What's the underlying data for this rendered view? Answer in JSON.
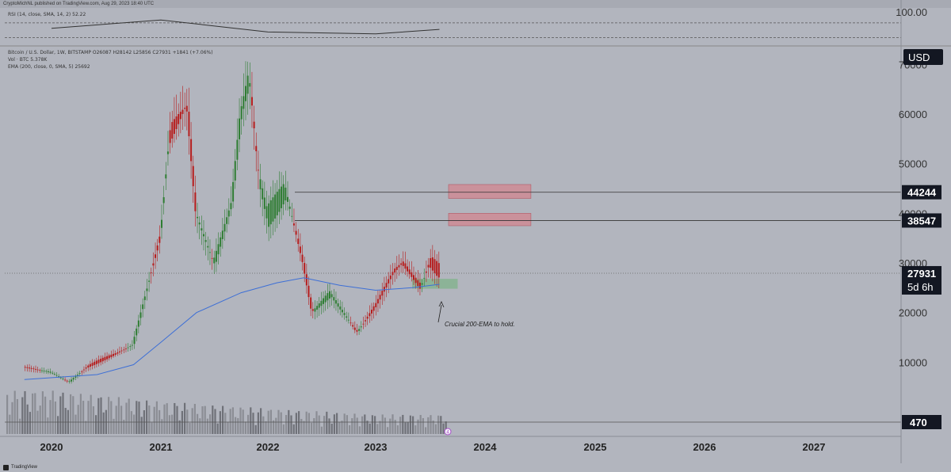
{
  "header": {
    "published_line": "CryptoMichNL published on TradingView.com, Aug 29, 2023 18:40 UTC"
  },
  "legend": {
    "rsi_line": "RSI (14, close, SMA, 14, 2)  52.22",
    "symbol_line": "Bitcoin / U.S. Dollar, 1W, BITSTAMP  O26087  H28142  L25856  C27931  +1841 (+7.06%)",
    "volume_line": "Vol · BTC  5.378K",
    "ema_line": "EMA (200, close, 0, SMA, 5)  25692"
  },
  "footer": {
    "brand": "TradingView"
  },
  "colors": {
    "background": "#b2b5be",
    "up": "#2e7d32",
    "down": "#b71c1c",
    "ema": "#3d6fd6",
    "resistance_zone": "#d4818b",
    "support_zone": "#7fb38a",
    "price_tag_bg": "#131722"
  },
  "chart_data": [
    {
      "type": "line",
      "title": "",
      "panel": "rsi",
      "ylim": [
        20,
        100
      ],
      "y_tick_labels": [
        "100.00"
      ],
      "guide_levels": [
        70,
        30
      ],
      "x": [
        "2020",
        "2021",
        "2022",
        "2023",
        "2023-08"
      ],
      "values": [
        55,
        78,
        45,
        40,
        52.22
      ]
    },
    {
      "type": "line",
      "title": "Bitcoin / U.S. Dollar, 1W, BITSTAMP",
      "currency": "USD",
      "ylim": [
        0,
        75000
      ],
      "y_tick_labels": [
        "70000",
        "60000",
        "50000",
        "40000",
        "30000",
        "20000",
        "10000"
      ],
      "x_tick_labels": [
        "2020",
        "2021",
        "2022",
        "2023",
        "2024",
        "2025",
        "2026",
        "2027"
      ],
      "grid": false,
      "price_series": {
        "name": "Bitcoin / U.S. Dollar",
        "x": [
          "2019-10",
          "2020-01",
          "2020-03",
          "2020-05",
          "2020-08",
          "2020-10",
          "2020-12",
          "2021-01",
          "2021-02",
          "2021-04",
          "2021-05",
          "2021-07",
          "2021-09",
          "2021-10",
          "2021-11",
          "2021-12",
          "2022-01",
          "2022-03",
          "2022-05",
          "2022-06",
          "2022-08",
          "2022-11",
          "2023-01",
          "2023-03",
          "2023-04",
          "2023-06",
          "2023-07",
          "2023-08"
        ],
        "values": [
          9000,
          8000,
          6000,
          9000,
          11500,
          13500,
          28000,
          35000,
          55000,
          62000,
          40000,
          30000,
          42000,
          60000,
          68000,
          48000,
          40000,
          45000,
          30000,
          20000,
          24000,
          16000,
          21000,
          28000,
          30000,
          25000,
          30000,
          27931
        ]
      },
      "ema_series": {
        "name": "EMA (200, close, 0, SMA, 5)",
        "x": [
          "2019-10",
          "2020-06",
          "2020-10",
          "2021-01",
          "2021-05",
          "2021-10",
          "2022-02",
          "2022-05",
          "2022-09",
          "2023-01",
          "2023-05",
          "2023-08"
        ],
        "values": [
          6500,
          7500,
          9500,
          14000,
          20000,
          24000,
          26000,
          27000,
          25500,
          24500,
          25000,
          25692
        ]
      },
      "volume_series": {
        "name": "Vol · BTC",
        "x": [
          "2020",
          "2021",
          "2022",
          "2023"
        ],
        "values": [
          12000,
          9000,
          7000,
          5378
        ]
      },
      "horizontal_levels": [
        {
          "label": "44244",
          "value": 44244
        },
        {
          "label": "38547",
          "value": 38547
        }
      ],
      "resistance_zones": [
        {
          "y_range": [
            43000,
            45800
          ],
          "x_range": [
            "2023-09",
            "2024-06"
          ]
        },
        {
          "y_range": [
            37500,
            40000
          ],
          "x_range": [
            "2023-09",
            "2024-06"
          ]
        }
      ],
      "support_zone": {
        "y_range": [
          24800,
          26800
        ],
        "x_range": [
          "2023-05",
          "2023-10"
        ]
      },
      "price_tag": {
        "value": "27931",
        "countdown": "5d 6h"
      },
      "volume_tag": {
        "value": "470"
      },
      "annotation": "Crucial 200-EMA to hold.",
      "marker": "4"
    }
  ]
}
